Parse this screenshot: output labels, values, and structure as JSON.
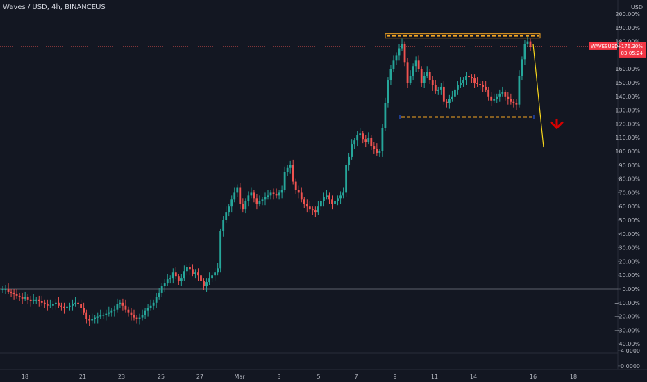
{
  "chart_data": {
    "type": "candlestick",
    "title": "Waves / USD, 4h, BINANCEUS",
    "currency": "USD",
    "y_axis": {
      "unit": "%",
      "ticks": [
        "200.00%",
        "190.00%",
        "180.00%",
        "160.00%",
        "150.00%",
        "140.00%",
        "130.00%",
        "120.00%",
        "110.00%",
        "100.00%",
        "90.00%",
        "80.00%",
        "70.00%",
        "60.00%",
        "50.00%",
        "40.00%",
        "30.00%",
        "20.00%",
        "10.00%",
        "0.00%",
        "−10.00%",
        "−20.00%",
        "−30.00%",
        "−40.00%",
        "4.0000",
        "0.0000"
      ],
      "tick_values": [
        200,
        190,
        180,
        160,
        150,
        140,
        130,
        120,
        110,
        100,
        90,
        80,
        70,
        60,
        50,
        40,
        30,
        20,
        10,
        0,
        -10,
        -20,
        -30,
        -40,
        -45,
        -56
      ],
      "ylim": [
        -56,
        205
      ]
    },
    "x_axis": {
      "ticks": [
        "18",
        "21",
        "23",
        "25",
        "27",
        "Mar",
        "3",
        "5",
        "7",
        "9",
        "11",
        "14",
        "16",
        "18"
      ]
    },
    "current": {
      "symbol": "WAVESUSD",
      "change": "+176.30%",
      "countdown": "03:05:24",
      "value_pct": 176.3,
      "color": "#f23645"
    },
    "colors": {
      "up": "#26a69a",
      "down": "#ef5350",
      "background": "#131722",
      "resistance": "#f5a623",
      "support": "#2962ff",
      "projection": "#f9d71c",
      "arrow": "#d50000"
    },
    "resistance_level_pct": 184,
    "support_level_pct": 125,
    "baseline_pct": 0,
    "projection": {
      "from_pct": 178,
      "to_pct": 103
    },
    "close_series_pct": [
      0,
      0,
      -2,
      -3,
      -4,
      -5,
      -6,
      -7,
      -6,
      -8,
      -9,
      -8,
      -8,
      -9,
      -10,
      -11,
      -12,
      -12,
      -11,
      -10,
      -12,
      -13,
      -14,
      -13,
      -12,
      -11,
      -10,
      -11,
      -14,
      -17,
      -22,
      -23,
      -22,
      -21,
      -20,
      -19,
      -19,
      -18,
      -17,
      -16,
      -15,
      -11,
      -10,
      -12,
      -15,
      -17,
      -19,
      -21,
      -22,
      -21,
      -19,
      -16,
      -14,
      -12,
      -10,
      -6,
      -3,
      2,
      4,
      7,
      8,
      12,
      9,
      6,
      8,
      13,
      16,
      14,
      11,
      12,
      10,
      6,
      2,
      5,
      8,
      10,
      12,
      15,
      42,
      50,
      56,
      60,
      65,
      70,
      74,
      62,
      58,
      64,
      68,
      70,
      66,
      62,
      64,
      65,
      67,
      68,
      70,
      69,
      68,
      70,
      72,
      85,
      88,
      90,
      78,
      72,
      70,
      65,
      62,
      60,
      58,
      57,
      56,
      60,
      64,
      67,
      68,
      65,
      62,
      64,
      66,
      68,
      70,
      90,
      96,
      105,
      108,
      112,
      113,
      109,
      107,
      110,
      104,
      102,
      99,
      100,
      117,
      135,
      152,
      160,
      166,
      170,
      175,
      178,
      165,
      150,
      155,
      162,
      166,
      160,
      150,
      155,
      158,
      152,
      148,
      144,
      145,
      147,
      136,
      135,
      138,
      140,
      145,
      148,
      150,
      152,
      155,
      154,
      153,
      150,
      149,
      148,
      147,
      145,
      140,
      137,
      138,
      140,
      142,
      143,
      140,
      138,
      136,
      135,
      134,
      155,
      167,
      178,
      180,
      176
    ]
  }
}
